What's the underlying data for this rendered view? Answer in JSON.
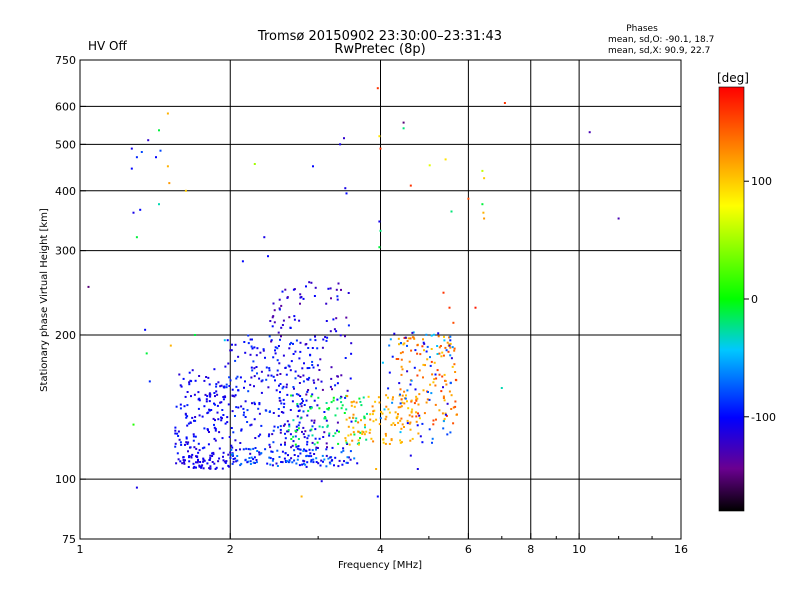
{
  "header": {
    "title_line1": "Tromsø 20150902 23:30:00–23:31:43",
    "title_line2": "RwPretec (8p)",
    "status": "HV Off",
    "status_color": "#e00000",
    "stats_title": "Phases",
    "stats_o": "mean, sd,O: -90.1, 18.7",
    "stats_x": "mean, sd,X:  90.9, 22.7"
  },
  "colorbar": {
    "label": "[deg]",
    "ticks": [
      {
        "value": 100,
        "label": "100"
      },
      {
        "value": 0,
        "label": "0"
      },
      {
        "value": -100,
        "label": "-100"
      }
    ],
    "range": [
      -180,
      180
    ]
  },
  "chart_data": {
    "type": "scatter",
    "title": "Tromsø 20150902 23:30:00–23:31:43",
    "subtitle": "RwPretec (8p)",
    "xlabel": "Frequency [MHz]",
    "ylabel": "Stationary phase Virtual Height [km]",
    "xscale": "log",
    "yscale": "log",
    "xlim": [
      1,
      16
    ],
    "ylim": [
      75,
      750
    ],
    "xticks": [
      {
        "value": 1,
        "label": "1"
      },
      {
        "value": 2,
        "label": "2"
      },
      {
        "value": 4,
        "label": "4"
      },
      {
        "value": 6,
        "label": "6"
      },
      {
        "value": 8,
        "label": "8"
      },
      {
        "value": 10,
        "label": "10"
      },
      {
        "value": 16,
        "label": "16"
      }
    ],
    "yticks": [
      {
        "value": 75,
        "label": "75"
      },
      {
        "value": 100,
        "label": "100"
      },
      {
        "value": 200,
        "label": "200"
      },
      {
        "value": 300,
        "label": "300"
      },
      {
        "value": 400,
        "label": "400"
      },
      {
        "value": 500,
        "label": "500"
      },
      {
        "value": 600,
        "label": "600"
      },
      {
        "value": 750,
        "label": "750"
      }
    ],
    "vgrid": [
      2,
      4,
      6,
      8,
      10
    ],
    "hgrid": [
      100,
      200,
      300,
      400,
      500,
      600
    ],
    "color_dimension": "phase [deg]",
    "points": [
      {
        "f": 1.04,
        "h": 252,
        "p": -150
      },
      {
        "f": 1.27,
        "h": 490,
        "p": -110
      },
      {
        "f": 1.3,
        "h": 470,
        "p": -90
      },
      {
        "f": 1.27,
        "h": 445,
        "p": -100
      },
      {
        "f": 1.33,
        "h": 482,
        "p": -80
      },
      {
        "f": 1.37,
        "h": 510,
        "p": -120
      },
      {
        "f": 1.42,
        "h": 470,
        "p": -100
      },
      {
        "f": 1.45,
        "h": 485,
        "p": -80
      },
      {
        "f": 1.44,
        "h": 535,
        "p": -10
      },
      {
        "f": 1.5,
        "h": 450,
        "p": 110
      },
      {
        "f": 1.5,
        "h": 580,
        "p": 110
      },
      {
        "f": 1.44,
        "h": 375,
        "p": -30
      },
      {
        "f": 1.28,
        "h": 360,
        "p": -110
      },
      {
        "f": 1.32,
        "h": 365,
        "p": -100
      },
      {
        "f": 1.35,
        "h": 205,
        "p": -100
      },
      {
        "f": 1.36,
        "h": 183,
        "p": -10
      },
      {
        "f": 1.38,
        "h": 160,
        "p": -90
      },
      {
        "f": 1.28,
        "h": 130,
        "p": 10
      },
      {
        "f": 1.3,
        "h": 96,
        "p": -110
      },
      {
        "f": 1.3,
        "h": 320,
        "p": -10
      },
      {
        "f": 1.63,
        "h": 400,
        "p": 100
      },
      {
        "f": 1.51,
        "h": 415,
        "p": 120
      },
      {
        "f": 2.24,
        "h": 455,
        "p": 50
      },
      {
        "f": 2.34,
        "h": 320,
        "p": -110
      },
      {
        "f": 2.12,
        "h": 285,
        "p": -100
      },
      {
        "f": 2.38,
        "h": 292,
        "p": -100
      },
      {
        "f": 2.93,
        "h": 450,
        "p": -100
      },
      {
        "f": 3.32,
        "h": 500,
        "p": -110
      },
      {
        "f": 3.38,
        "h": 515,
        "p": -120
      },
      {
        "f": 3.4,
        "h": 405,
        "p": -110
      },
      {
        "f": 3.42,
        "h": 395,
        "p": -100
      },
      {
        "f": 3.95,
        "h": 655,
        "p": 160
      },
      {
        "f": 3.98,
        "h": 520,
        "p": 90
      },
      {
        "f": 4.0,
        "h": 490,
        "p": 160
      },
      {
        "f": 3.98,
        "h": 345,
        "p": -110
      },
      {
        "f": 4.0,
        "h": 330,
        "p": -20
      },
      {
        "f": 3.98,
        "h": 305,
        "p": -10
      },
      {
        "f": 4.45,
        "h": 555,
        "p": -150
      },
      {
        "f": 4.45,
        "h": 540,
        "p": -20
      },
      {
        "f": 4.6,
        "h": 410,
        "p": 160
      },
      {
        "f": 5.02,
        "h": 452,
        "p": 70
      },
      {
        "f": 5.4,
        "h": 465,
        "p": 90
      },
      {
        "f": 5.55,
        "h": 362,
        "p": -20
      },
      {
        "f": 6.4,
        "h": 440,
        "p": 60
      },
      {
        "f": 6.45,
        "h": 425,
        "p": 100
      },
      {
        "f": 6.4,
        "h": 375,
        "p": -10
      },
      {
        "f": 6.43,
        "h": 360,
        "p": 110
      },
      {
        "f": 6.45,
        "h": 350,
        "p": 120
      },
      {
        "f": 6.0,
        "h": 385,
        "p": 150
      },
      {
        "f": 7.1,
        "h": 610,
        "p": 160
      },
      {
        "f": 10.5,
        "h": 530,
        "p": -130
      },
      {
        "f": 12.0,
        "h": 350,
        "p": -130
      },
      {
        "f": 6.2,
        "h": 228,
        "p": 170
      },
      {
        "f": 7.0,
        "h": 155,
        "p": -30
      },
      {
        "f": 5.35,
        "h": 245,
        "p": 160
      },
      {
        "f": 5.5,
        "h": 228,
        "p": 160
      },
      {
        "f": 5.6,
        "h": 212,
        "p": 150
      },
      {
        "f": 2.78,
        "h": 92,
        "p": 110
      },
      {
        "f": 3.05,
        "h": 99,
        "p": -110
      },
      {
        "f": 3.95,
        "h": 92,
        "p": -100
      },
      {
        "f": 3.92,
        "h": 105,
        "p": 110
      },
      {
        "f": 4.6,
        "h": 112,
        "p": -110
      },
      {
        "f": 4.75,
        "h": 105,
        "p": -110
      },
      {
        "f": 1.52,
        "h": 190,
        "p": 110
      },
      {
        "f": 1.95,
        "h": 195,
        "p": -40
      },
      {
        "f": 1.7,
        "h": 200,
        "p": -10
      }
    ],
    "clusters": [
      {
        "f_range": [
          1.55,
          1.95
        ],
        "h_range": [
          112,
          170
        ],
        "phase_range": [
          -120,
          -90
        ],
        "count": 140
      },
      {
        "f_range": [
          1.95,
          3.0
        ],
        "h_range": [
          108,
          200
        ],
        "phase_range": [
          -120,
          -80
        ],
        "count": 260
      },
      {
        "f_range": [
          2.4,
          3.5
        ],
        "h_range": [
          115,
          260
        ],
        "phase_range": [
          -140,
          -90
        ],
        "count": 150
      },
      {
        "f_range": [
          2.6,
          3.8
        ],
        "h_range": [
          118,
          150
        ],
        "phase_range": [
          -30,
          0
        ],
        "count": 70
      },
      {
        "f_range": [
          3.4,
          4.8
        ],
        "h_range": [
          118,
          150
        ],
        "phase_range": [
          95,
          130
        ],
        "count": 110
      },
      {
        "f_range": [
          4.3,
          5.7
        ],
        "h_range": [
          130,
          200
        ],
        "phase_range": [
          100,
          160
        ],
        "count": 120
      },
      {
        "f_range": [
          4.0,
          5.6
        ],
        "h_range": [
          118,
          205
        ],
        "phase_range": [
          -120,
          -40
        ],
        "count": 70
      },
      {
        "f_range": [
          1.55,
          2.0
        ],
        "h_range": [
          105,
          112
        ],
        "phase_range": [
          -120,
          -100
        ],
        "count": 60
      },
      {
        "f_range": [
          1.98,
          3.6
        ],
        "h_range": [
          106,
          116
        ],
        "phase_range": [
          -120,
          -60
        ],
        "count": 120
      }
    ]
  }
}
